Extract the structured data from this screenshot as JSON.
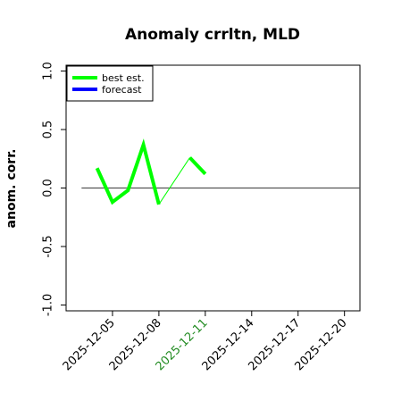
{
  "chart_data": {
    "type": "line",
    "title": "Anomaly crrltn, MLD",
    "ylabel": "anom. corr.",
    "xlabel": "",
    "ylim": [
      -1.05,
      1.05
    ],
    "yticks": [
      -1.0,
      -0.5,
      0.0,
      0.5,
      1.0
    ],
    "ytick_labels": [
      "-1.0",
      "-0.5",
      "0.0",
      "0.5",
      "1.0"
    ],
    "xlim": [
      "2025-12-02",
      "2025-12-21"
    ],
    "xticks": [
      "2025-12-05",
      "2025-12-08",
      "2025-12-11",
      "2025-12-14",
      "2025-12-17",
      "2025-12-20"
    ],
    "xtick_labels": [
      "2025-12-05",
      "2025-12-08",
      "2025-12-11",
      "2025-12-14",
      "2025-12-17",
      "2025-12-20"
    ],
    "highlight_tick": "2025-12-11",
    "highlight_color": "#228B22",
    "reference_line": {
      "y": 0.0,
      "x_from": "2025-12-03",
      "x_to": "2025-12-21",
      "color": "#555555"
    },
    "legend_position": "top-left",
    "series": [
      {
        "name": "best est.",
        "color": "#00ff00",
        "x": [
          "2025-12-04",
          "2025-12-05",
          "2025-12-06",
          "2025-12-07",
          "2025-12-08",
          "2025-12-10",
          "2025-12-11"
        ],
        "values": [
          0.17,
          -0.12,
          -0.02,
          0.37,
          -0.14,
          0.26,
          0.12
        ],
        "thick_segments": [
          [
            0,
            4
          ],
          [
            5,
            6
          ]
        ],
        "thin_segments": [
          [
            4,
            5
          ]
        ]
      },
      {
        "name": "forecast",
        "color": "#0000ff",
        "x": [],
        "values": []
      }
    ]
  }
}
